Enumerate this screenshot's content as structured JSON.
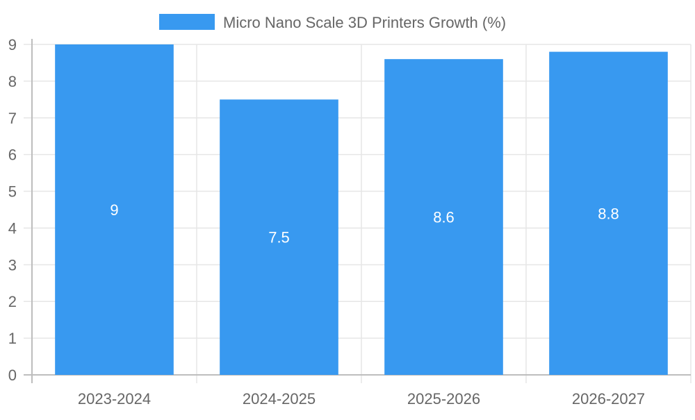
{
  "chart_data": {
    "type": "bar",
    "categories": [
      "2023-2024",
      "2024-2025",
      "2025-2026",
      "2026-2027"
    ],
    "series": [
      {
        "name": "Micro Nano Scale 3D Printers Growth (%)",
        "values": [
          9,
          7.5,
          8.6,
          8.8
        ]
      }
    ],
    "data_labels": [
      "9",
      "7.5",
      "8.6",
      "8.8"
    ],
    "ylim": [
      0,
      9
    ],
    "yticks": [
      0,
      1,
      2,
      3,
      4,
      5,
      6,
      7,
      8,
      9
    ],
    "grid": true,
    "legend_placement": "top-center",
    "colors": {
      "bar": "#3899f0",
      "grid": "#e6e6e6",
      "axis": "#bdbdbd",
      "tick_text": "#666666",
      "data_label": "#ffffff"
    }
  }
}
